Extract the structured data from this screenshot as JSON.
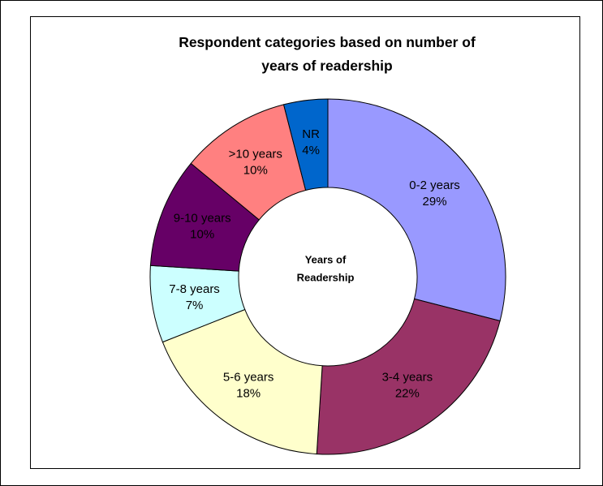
{
  "chart_data": {
    "type": "donut",
    "title": "Respondent categories based on number of years of readership",
    "center_label": [
      "Years of",
      "Readership"
    ],
    "categories": [
      "0-2 years",
      "3-4 years",
      "5-6 years",
      "7-8 years",
      "9-10 years",
      ">10 years",
      "NR"
    ],
    "values": [
      29,
      22,
      18,
      7,
      10,
      10,
      4
    ],
    "value_labels": [
      "29%",
      "22%",
      "18%",
      "7%",
      "10%",
      "10%",
      "4%"
    ],
    "colors": [
      "#9999ff",
      "#993366",
      "#ffffcc",
      "#ccffff",
      "#660066",
      "#ff8080",
      "#0066cc"
    ]
  }
}
